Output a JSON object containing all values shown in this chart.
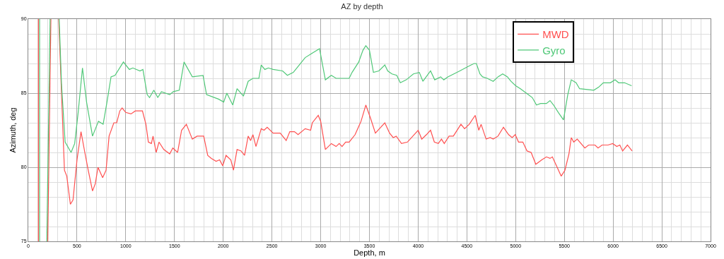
{
  "chart_data": {
    "type": "line",
    "title": "AZ by depth",
    "xlabel": "Depth, m",
    "ylabel": "Azimuth, deg",
    "xlim": [
      0,
      7000
    ],
    "xticks": [
      0,
      500,
      1000,
      1500,
      2000,
      2500,
      3000,
      3500,
      4000,
      4500,
      5000,
      5500,
      6000,
      6500,
      7000
    ],
    "ylim": [
      75,
      90
    ],
    "yticks": [
      75,
      80,
      85,
      90
    ],
    "grid": true,
    "legend": "top right",
    "marker": "none",
    "line_style": "solid",
    "series": [
      {
        "name": "MWD",
        "color": "#ff5050",
        "x": [
          104,
          104,
          null,
          200,
          232,
          null,
          312,
          371,
          395,
          432,
          459,
          500,
          541,
          580,
          615,
          659,
          688,
          715,
          763,
          798,
          829,
          878,
          907,
          939,
          963,
          1000,
          1054,
          1098,
          1171,
          1207,
          1232,
          1263,
          1280,
          1312,
          1341,
          1390,
          1451,
          1483,
          1532,
          1573,
          1622,
          1683,
          1732,
          1800,
          1841,
          1878,
          1927,
          1963,
          1995,
          2029,
          2078,
          2105,
          2142,
          2183,
          2219,
          2256,
          2281,
          2305,
          2336,
          2390,
          2419,
          2451,
          2512,
          2585,
          2646,
          2683,
          2731,
          2768,
          2841,
          2897,
          2914,
          2975,
          3000,
          3048,
          3109,
          3158,
          3190,
          3219,
          3256,
          3292,
          3353,
          3414,
          3463,
          3512,
          3561,
          3658,
          3707,
          3744,
          3775,
          3829,
          3890,
          4000,
          4037,
          4085,
          4127,
          4166,
          4207,
          4239,
          4268,
          4317,
          4361,
          4439,
          4476,
          4524,
          4585,
          4622,
          4646,
          4697,
          4739,
          4770,
          4819,
          4875,
          4928,
          4964,
          4996,
          5030,
          5074,
          5117,
          5159,
          5207,
          5268,
          5316,
          5353,
          5377,
          5426,
          5467,
          5506,
          5547,
          5571,
          5596,
          5632,
          5710,
          5749,
          5783,
          5814,
          5846,
          5887,
          5948,
          5996,
          6038,
          6069,
          6098,
          6147,
          6195
        ],
        "values": [
          90,
          75,
          null,
          75,
          90,
          null,
          90,
          79.8,
          79.4,
          77.5,
          77.8,
          80.5,
          82.4,
          81.0,
          79.8,
          78.4,
          78.9,
          80.0,
          79.3,
          79.8,
          82.1,
          83.0,
          83.0,
          83.8,
          84.0,
          83.7,
          83.6,
          83.8,
          83.8,
          82.9,
          81.7,
          81.6,
          82.1,
          81.0,
          81.7,
          81.2,
          80.9,
          81.3,
          81.0,
          82.5,
          82.9,
          81.9,
          82.1,
          82.1,
          80.8,
          80.6,
          80.4,
          80.5,
          80.1,
          80.8,
          80.5,
          79.8,
          81.2,
          81.1,
          80.8,
          82.1,
          81.8,
          82.2,
          81.4,
          82.6,
          82.5,
          82.7,
          82.3,
          82.3,
          81.8,
          82.4,
          82.4,
          82.2,
          82.6,
          82.5,
          83.0,
          83.5,
          83.1,
          81.2,
          81.6,
          81.4,
          81.6,
          81.4,
          81.7,
          81.7,
          82.2,
          83.1,
          84.2,
          83.3,
          82.3,
          83.0,
          82.3,
          82.0,
          82.1,
          81.6,
          81.7,
          82.5,
          81.9,
          82.2,
          82.5,
          81.7,
          81.6,
          81.9,
          81.6,
          82.1,
          82.1,
          82.9,
          82.6,
          82.9,
          83.5,
          82.5,
          82.9,
          81.9,
          82.0,
          81.9,
          82.1,
          82.7,
          82.2,
          82.0,
          82.2,
          81.7,
          81.7,
          81.1,
          81.0,
          80.2,
          80.5,
          80.7,
          80.6,
          80.7,
          80.0,
          79.4,
          79.8,
          80.9,
          82.0,
          81.7,
          81.9,
          81.3,
          81.5,
          81.5,
          81.5,
          81.3,
          81.5,
          81.5,
          81.6,
          81.4,
          81.5,
          81.1,
          81.5,
          81.1
        ]
      },
      {
        "name": "Gyro",
        "color": "#50c878",
        "x": [
          116,
          116,
          null,
          190,
          224,
          null,
          317,
          341,
          378,
          439,
          476,
          512,
          556,
          598,
          659,
          720,
          768,
          805,
          849,
          890,
          976,
          1037,
          1073,
          1146,
          1176,
          1220,
          1244,
          1288,
          1329,
          1366,
          1451,
          1488,
          1549,
          1598,
          1683,
          1793,
          1829,
          1951,
          2005,
          2037,
          2098,
          2142,
          2207,
          2256,
          2305,
          2366,
          2390,
          2427,
          2463,
          2512,
          2609,
          2658,
          2719,
          2780,
          2841,
          2914,
          2988,
          3048,
          3109,
          3158,
          3292,
          3322,
          3390,
          3434,
          3463,
          3500,
          3541,
          3597,
          3658,
          3688,
          3731,
          3780,
          3817,
          3878,
          3951,
          4012,
          4049,
          4127,
          4170,
          4231,
          4263,
          4305,
          4366,
          4427,
          4512,
          4573,
          4597,
          4634,
          4661,
          4709,
          4770,
          4819,
          4867,
          4916,
          4952,
          5001,
          5049,
          5110,
          5171,
          5214,
          5256,
          5316,
          5353,
          5389,
          5438,
          5491,
          5535,
          5571,
          5620,
          5656,
          5802,
          5851,
          5899,
          5972,
          6020,
          6057,
          6118,
          6190
        ],
        "values": [
          90,
          75,
          null,
          75,
          90,
          null,
          90,
          85.6,
          81.7,
          81.0,
          81.6,
          83.7,
          86.7,
          84.4,
          82.1,
          83.1,
          82.9,
          84.3,
          86.1,
          86.2,
          87.1,
          86.6,
          86.7,
          86.5,
          86.6,
          84.9,
          84.7,
          85.2,
          84.7,
          85.1,
          84.9,
          85.1,
          85.2,
          87.1,
          86.1,
          86.2,
          84.9,
          84.6,
          84.4,
          85.0,
          84.2,
          85.3,
          84.8,
          85.8,
          86.0,
          86.0,
          86.9,
          86.6,
          86.7,
          86.6,
          86.5,
          86.2,
          86.4,
          86.9,
          87.4,
          87.7,
          88.0,
          85.9,
          86.2,
          86.0,
          86.0,
          86.4,
          87.1,
          87.9,
          88.2,
          87.9,
          86.4,
          86.5,
          86.9,
          86.5,
          86.3,
          86.2,
          85.7,
          85.9,
          86.3,
          86.4,
          85.8,
          86.5,
          85.9,
          86.1,
          85.9,
          86.1,
          86.3,
          86.5,
          86.8,
          87.0,
          87.0,
          86.3,
          86.1,
          86.0,
          85.8,
          86.1,
          86.3,
          86.1,
          85.8,
          85.5,
          85.3,
          85.0,
          84.7,
          84.2,
          84.3,
          84.3,
          84.5,
          84.2,
          83.7,
          83.2,
          84.9,
          85.9,
          85.7,
          85.3,
          85.2,
          85.4,
          85.7,
          85.7,
          85.9,
          85.7,
          85.7,
          85.5
        ]
      }
    ]
  }
}
